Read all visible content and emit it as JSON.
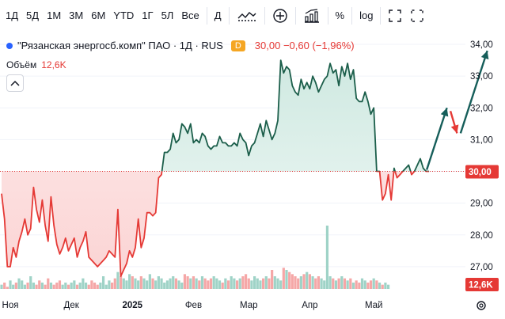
{
  "toolbar": {
    "ranges": [
      "1Д",
      "5Д",
      "1М",
      "3М",
      "6М",
      "YTD",
      "1Г",
      "5Л",
      "Все"
    ],
    "interval": "Д",
    "percent": "%",
    "log": "log"
  },
  "legend": {
    "title": "\"Рязанская энергосб.комп\" ПАО · 1Д · RUS",
    "badge": "D",
    "price": "30,00",
    "change": "−0,60 (−1,96%)"
  },
  "volume": {
    "label": "Объём",
    "value": "12,6K"
  },
  "colors": {
    "up_line": "#1b5e4a",
    "down_line": "#e53935",
    "up_fill": "#e7f3ef",
    "down_fill": "#fde6e6",
    "vol_up": "#9fd3c7",
    "vol_down": "#f5a7a7",
    "arrow_up": "#165e5a",
    "arrow_down": "#e53935",
    "price_label_bg": "#e53935"
  },
  "chart_data": {
    "type": "line",
    "baseline": 30.0,
    "last_price_label": "30,00",
    "last_volume_label": "12,6K",
    "ylim": [
      26.3,
      34.4
    ],
    "y_ticks": [
      27,
      28,
      29,
      30,
      31,
      32,
      33,
      34
    ],
    "y_tick_labels": [
      "27,00",
      "28,00",
      "29,00",
      "31,00",
      "32,00",
      "33,00",
      "34,00"
    ],
    "x_ticks": [
      {
        "label": "Ноя",
        "i": 3
      },
      {
        "label": "Дек",
        "i": 24
      },
      {
        "label": "2025",
        "i": 45,
        "bold": true
      },
      {
        "label": "Фев",
        "i": 66
      },
      {
        "label": "Мар",
        "i": 85
      },
      {
        "label": "Апр",
        "i": 106
      },
      {
        "label": "Май",
        "i": 128
      }
    ],
    "x_count": 134,
    "price": [
      29.3,
      28.5,
      27.0,
      27.0,
      27.6,
      27.3,
      27.8,
      28.1,
      28.5,
      28.0,
      28.2,
      29.5,
      28.8,
      28.4,
      29.1,
      28.3,
      27.8,
      29.2,
      28.3,
      27.7,
      27.4,
      27.6,
      27.9,
      27.5,
      27.7,
      27.9,
      27.3,
      27.6,
      27.8,
      28.1,
      27.3,
      27.2,
      27.1,
      27.0,
      27.1,
      27.2,
      27.3,
      27.5,
      27.4,
      27.3,
      28.8,
      26.7,
      26.9,
      27.1,
      27.5,
      27.3,
      27.6,
      28.5,
      27.6,
      27.9,
      28.7,
      28.7,
      28.6,
      28.7,
      29.8,
      29.9,
      30.6,
      30.6,
      30.7,
      31.2,
      30.9,
      31.0,
      31.5,
      31.4,
      31.2,
      31.5,
      30.9,
      31.0,
      30.9,
      31.2,
      31.1,
      30.8,
      30.7,
      30.8,
      30.8,
      31.1,
      30.9,
      30.9,
      30.8,
      30.8,
      30.9,
      30.8,
      31.2,
      31.0,
      30.9,
      30.5,
      30.8,
      30.9,
      31.2,
      31.5,
      31.1,
      31.6,
      31.3,
      31.0,
      31.2,
      31.6,
      33.5,
      33.1,
      33.3,
      33.2,
      32.7,
      32.5,
      32.4,
      32.9,
      32.6,
      32.8,
      32.6,
      33.0,
      32.8,
      32.5,
      32.7,
      32.9,
      33.0,
      33.4,
      33.1,
      33.2,
      32.7,
      33.3,
      33.0,
      33.4,
      32.9,
      33.2,
      32.3,
      32.2,
      32.2,
      32.5,
      32.2,
      31.8,
      32.0,
      30.0,
      30.0,
      29.1,
      29.3,
      29.9
    ],
    "price_tail": [
      29.1,
      30.1,
      29.8,
      29.9,
      30.0,
      30.1,
      30.2,
      29.9,
      30.0,
      30.2,
      30.4,
      30.1,
      30.0,
      30.0
    ],
    "volume": [
      2,
      3,
      1,
      4,
      2,
      3,
      5,
      4,
      2,
      3,
      6,
      3,
      2,
      4,
      3,
      2,
      5,
      3,
      2,
      3,
      4,
      2,
      3,
      2,
      3,
      4,
      2,
      3,
      5,
      3,
      2,
      4,
      3,
      2,
      3,
      6,
      2,
      4,
      3,
      5,
      8,
      6,
      5,
      4,
      7,
      6,
      5,
      4,
      6,
      5,
      4,
      7,
      5,
      4,
      6,
      5,
      3,
      4,
      5,
      6,
      5,
      4,
      3,
      7,
      6,
      5,
      6,
      5,
      4,
      6,
      5,
      4,
      5,
      6,
      5,
      4,
      3,
      5,
      4,
      6,
      5,
      4,
      5,
      6,
      7,
      5,
      4,
      6,
      5,
      4,
      5,
      6,
      5,
      9,
      6,
      5,
      4,
      10,
      9,
      8,
      7,
      6,
      5,
      6,
      7,
      8,
      7,
      6,
      5,
      6,
      5,
      4,
      30,
      6,
      5,
      4,
      5,
      6,
      5,
      4,
      5,
      3,
      4,
      3,
      5,
      4,
      3,
      4,
      5,
      4,
      3,
      2,
      3,
      2
    ],
    "arrows": [
      {
        "dir": "up",
        "from": [
          0.845,
          30.05
        ],
        "to": [
          0.885,
          32.0
        ]
      },
      {
        "dir": "down",
        "from": [
          0.892,
          31.9
        ],
        "to": [
          0.905,
          31.2
        ]
      },
      {
        "dir": "up",
        "from": [
          0.912,
          31.2
        ],
        "to": [
          0.965,
          33.8
        ]
      }
    ]
  }
}
